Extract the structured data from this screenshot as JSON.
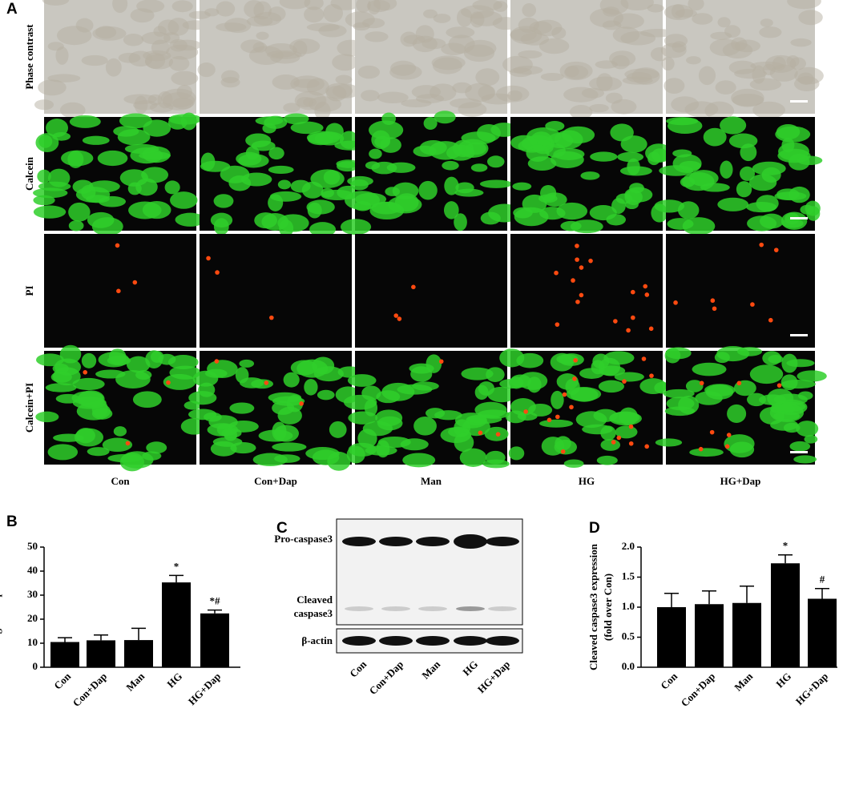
{
  "panel_a": {
    "label": "A",
    "rows": [
      "Phase contrast",
      "Calcein",
      "PI",
      "Calcein+PI"
    ],
    "columns": [
      "Con",
      "Con+Dap",
      "Man",
      "HG",
      "HG+Dap"
    ]
  },
  "panel_c": {
    "label": "C",
    "bands": [
      "Pro-caspase3",
      "Cleaved",
      "caspase3"
    ],
    "loading_control": "β-actin",
    "lanes": [
      "Con",
      "Con+Dap",
      "Man",
      "HG",
      "HG+Dap"
    ]
  },
  "chart_data": [
    {
      "type": "bar",
      "label": "B",
      "ylabel": "Percentage of PI positive cells",
      "categories": [
        "Con",
        "Con+Dap",
        "Man",
        "HG",
        "HG+Dap"
      ],
      "values": [
        10.5,
        11.2,
        11.3,
        35.3,
        22.4
      ],
      "errors": [
        1.8,
        2.2,
        4.9,
        2.9,
        1.4
      ],
      "annotations": [
        null,
        null,
        null,
        "*",
        "*#"
      ],
      "color": "#000000",
      "ylim": [
        0,
        50
      ],
      "yticks": [
        0,
        10,
        20,
        30,
        40,
        50
      ]
    },
    {
      "type": "bar",
      "label": "D",
      "ylabel": [
        "Cleaved caspase3 expression",
        "(fold over Con)"
      ],
      "categories": [
        "Con",
        "Con+Dap",
        "Man",
        "HG",
        "HG+Dap"
      ],
      "values": [
        1.0,
        1.05,
        1.07,
        1.73,
        1.14
      ],
      "errors": [
        0.23,
        0.22,
        0.28,
        0.14,
        0.17
      ],
      "annotations": [
        null,
        null,
        null,
        "*",
        "#"
      ],
      "color": "#000000",
      "ylim": [
        0,
        2.0
      ],
      "yticks": [
        {
          "value": 0,
          "label": "0.0"
        },
        0.5,
        {
          "value": 1.0,
          "label": "1.0"
        },
        1.5,
        {
          "value": 2.0,
          "label": "2.0"
        }
      ]
    }
  ]
}
